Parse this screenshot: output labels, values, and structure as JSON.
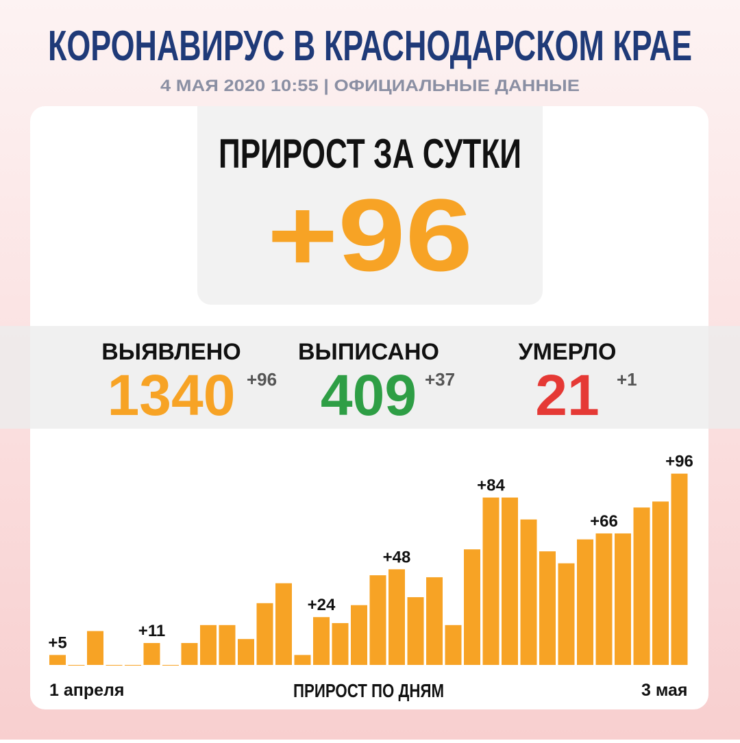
{
  "header": {
    "title": "КОРОНАВИРУС В КРАСНОДАРСКОМ КРАЕ",
    "subtitle": "4 МАЯ 2020 10:55 | ОФИЦИАЛЬНЫЕ ДАННЫЕ"
  },
  "daily": {
    "label": "ПРИРОСТ ЗА СУТКИ",
    "value": "+96"
  },
  "stats": [
    {
      "label": "ВЫЯВЛЕНО",
      "value": "1340",
      "delta": "+96",
      "color": "#f7a325"
    },
    {
      "label": "ВЫПИСАНО",
      "value": "409",
      "delta": "+37",
      "color": "#2e9e45"
    },
    {
      "label": "УМЕРЛО",
      "value": "21",
      "delta": "+1",
      "color": "#e53935"
    }
  ],
  "chart_data": {
    "type": "bar",
    "x_label": "ПРИРОСТ ПО ДНЯМ",
    "color": "#f7a325",
    "categories": [
      "1 апреля",
      null,
      null,
      null,
      null,
      null,
      null,
      null,
      null,
      null,
      null,
      null,
      null,
      null,
      null,
      null,
      null,
      null,
      null,
      null,
      null,
      null,
      null,
      null,
      null,
      null,
      null,
      null,
      null,
      null,
      null,
      null,
      null,
      "3 мая"
    ],
    "values": [
      5,
      0,
      17,
      0,
      0,
      11,
      0,
      11,
      20,
      20,
      13,
      31,
      41,
      5,
      24,
      21,
      30,
      45,
      48,
      34,
      44,
      20,
      58,
      84,
      84,
      73,
      57,
      51,
      63,
      66,
      66,
      79,
      82,
      96
    ],
    "value_labels": [
      "+5",
      null,
      null,
      null,
      null,
      "+11",
      null,
      null,
      null,
      null,
      null,
      null,
      null,
      null,
      "+24",
      null,
      null,
      null,
      "+48",
      null,
      null,
      null,
      null,
      "+84",
      null,
      null,
      null,
      null,
      null,
      "+66",
      null,
      null,
      null,
      "+96"
    ],
    "ylim": [
      0,
      100
    ]
  }
}
